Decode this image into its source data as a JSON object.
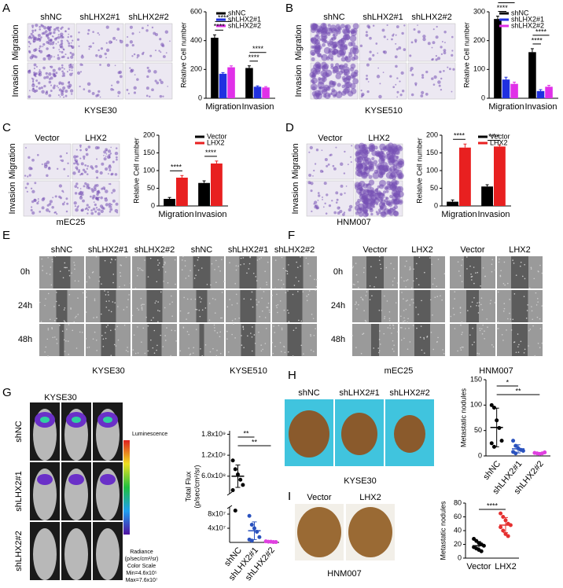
{
  "figure": {
    "panels": [
      {
        "label": "A",
        "columns": [
          "shNC",
          "shLHX2#1",
          "shLHX2#2"
        ],
        "rows": [
          "Migration",
          "Invasion"
        ],
        "caption": "KYSE30"
      },
      {
        "label": "B",
        "columns": [
          "shNC",
          "shLHX2#1",
          "shLHX2#2"
        ],
        "rows": [
          "Migration",
          "Invasion"
        ],
        "caption": "KYSE510"
      },
      {
        "label": "C",
        "columns": [
          "Vector",
          "LHX2"
        ],
        "rows": [
          "Migration",
          "Invasion"
        ],
        "caption": "mEC25"
      },
      {
        "label": "D",
        "columns": [
          "Vector",
          "LHX2"
        ],
        "rows": [
          "Migration",
          "Invasion"
        ],
        "caption": "HNM007"
      },
      {
        "label": "E",
        "rows": [
          "0h",
          "24h",
          "48h"
        ],
        "groups": [
          {
            "columns": [
              "shNC",
              "shLHX2#1",
              "shLHX2#2"
            ],
            "caption": "KYSE30"
          },
          {
            "columns": [
              "shNC",
              "shLHX2#1",
              "shLHX2#2"
            ],
            "caption": "KYSE510"
          }
        ]
      },
      {
        "label": "F",
        "rows": [
          "0h",
          "24h",
          "48h"
        ],
        "groups": [
          {
            "columns": [
              "Vector",
              "LHX2"
            ],
            "caption": "mEC25"
          },
          {
            "columns": [
              "Vector",
              "LHX2"
            ],
            "caption": "HNM007"
          }
        ]
      },
      {
        "label": "G",
        "title": "KYSE30",
        "rows": [
          "shNC",
          "shLHX2#1",
          "shLHX2#2"
        ],
        "colorbar": {
          "title": "Luminescence",
          "lines": [
            "Radiance",
            "(p/sec/cm²/sr)",
            "Color Scale",
            "Min=4.6x10⁵",
            "Max=7.6x10⁷"
          ]
        }
      },
      {
        "label": "H",
        "columns": [
          "shNC",
          "shLHX2#1",
          "shLHX2#2"
        ],
        "caption": "KYSE30"
      },
      {
        "label": "I",
        "columns": [
          "Vector",
          "LHX2"
        ],
        "caption": "HNM007"
      }
    ]
  },
  "chart_data": [
    {
      "type": "bar",
      "categories": [
        "Migration",
        "Invasion"
      ],
      "ylabel": "Relative Cell number",
      "ylim": [
        0,
        600
      ],
      "yticks": [
        0,
        200,
        400,
        600
      ],
      "series": [
        {
          "name": "shNC",
          "color": "#000000",
          "values": [
            420,
            210
          ],
          "errors": [
            20,
            15
          ]
        },
        {
          "name": "shLHX2#1",
          "color": "#2030e0",
          "values": [
            170,
            80
          ],
          "errors": [
            8,
            6
          ]
        },
        {
          "name": "shLHX2#2",
          "color": "#e030e8",
          "values": [
            215,
            75
          ],
          "errors": [
            10,
            6
          ]
        }
      ],
      "annotations": [
        "****",
        "****",
        "****",
        "****"
      ]
    },
    {
      "type": "bar",
      "categories": [
        "Migration",
        "Invasion"
      ],
      "ylabel": "Relative Cell number",
      "ylim": [
        0,
        300
      ],
      "yticks": [
        0,
        100,
        200,
        300
      ],
      "series": [
        {
          "name": "shNC",
          "color": "#000000",
          "values": [
            275,
            160
          ],
          "errors": [
            10,
            12
          ]
        },
        {
          "name": "shLHX2#1",
          "color": "#2030e0",
          "values": [
            65,
            25
          ],
          "errors": [
            8,
            5
          ]
        },
        {
          "name": "shLHX2#2",
          "color": "#e030e8",
          "values": [
            50,
            40
          ],
          "errors": [
            6,
            5
          ]
        }
      ],
      "annotations": [
        "****",
        "****",
        "****",
        "****"
      ]
    },
    {
      "type": "bar",
      "categories": [
        "Migration",
        "Invasion"
      ],
      "ylabel": "Relative Cell number",
      "ylim": [
        0,
        200
      ],
      "yticks": [
        0,
        50,
        100,
        150,
        200
      ],
      "series": [
        {
          "name": "Vector",
          "color": "#000000",
          "values": [
            20,
            65
          ],
          "errors": [
            4,
            6
          ]
        },
        {
          "name": "LHX2",
          "color": "#e82020",
          "values": [
            80,
            120
          ],
          "errors": [
            6,
            7
          ]
        }
      ],
      "annotations": [
        "****",
        "****"
      ]
    },
    {
      "type": "bar",
      "categories": [
        "Migration",
        "Invasion"
      ],
      "ylabel": "Relative Cell number",
      "ylim": [
        0,
        200
      ],
      "yticks": [
        0,
        50,
        100,
        150,
        200
      ],
      "series": [
        {
          "name": "Vector",
          "color": "#000000",
          "values": [
            12,
            55
          ],
          "errors": [
            5,
            5
          ]
        },
        {
          "name": "LHX2",
          "color": "#e82020",
          "values": [
            165,
            168
          ],
          "errors": [
            10,
            4
          ]
        }
      ],
      "annotations": [
        "****",
        "****"
      ]
    },
    {
      "type": "scatter",
      "categories": [
        "shNC",
        "shLHX2#1",
        "shLHX2#2"
      ],
      "colors": [
        "#000000",
        "#2a52be",
        "#e040e0"
      ],
      "ylabel": [
        "Total Flux",
        "(p/sec/cm²/sr)"
      ],
      "axis_break": true,
      "ylim": [
        0,
        100000000
      ],
      "ylim_upper": [
        100000000,
        1900000000
      ],
      "yticks": [
        {
          "value": 40000000,
          "label": "4x10⁷"
        },
        {
          "value": 80000000,
          "label": "8x10⁷"
        },
        {
          "value": 600000000,
          "label": "6.0x10⁸"
        },
        {
          "value": 1200000000,
          "label": "1.2x10⁹"
        },
        {
          "value": 1800000000,
          "label": "1.8x10⁹"
        }
      ],
      "points": [
        [
          1050000000,
          800000000,
          650000000,
          500000000,
          350000000,
          200000000,
          90000000
        ],
        [
          75000000,
          50000000,
          40000000,
          30000000,
          15000000,
          8000000,
          5000000
        ],
        [
          3000000,
          2000000,
          2000000,
          1000000,
          1000000
        ]
      ],
      "means": [
        600000000,
        33000000,
        1800000
      ],
      "sd": [
        320000000,
        25000000,
        800000
      ],
      "annotations": [
        "**",
        "**"
      ]
    },
    {
      "type": "scatter",
      "categories": [
        "shNC",
        "shLHX2#1",
        "shLHX2#2"
      ],
      "colors": [
        "#000000",
        "#2a52be",
        "#e040e0"
      ],
      "ylabel": "Metastatic nodules",
      "ylim": [
        0,
        150
      ],
      "yticks": [
        0,
        50,
        100,
        150
      ],
      "points": [
        [
          100,
          95,
          70,
          55,
          30,
          25,
          18
        ],
        [
          30,
          20,
          15,
          12,
          10,
          8,
          5
        ],
        [
          6,
          5,
          4,
          5,
          7
        ]
      ],
      "means": [
        56,
        14,
        5.4
      ],
      "sd": [
        38,
        8,
        1.1
      ],
      "annotations": [
        "*",
        "**"
      ]
    },
    {
      "type": "scatter",
      "categories": [
        "Vector",
        "LHX2"
      ],
      "colors": [
        "#000000",
        "#e53030"
      ],
      "ylabel": "Metastatic nodules",
      "ylim": [
        0,
        80
      ],
      "yticks": [
        0,
        20,
        40,
        60,
        80
      ],
      "points": [
        [
          28,
          25,
          22,
          20,
          18,
          16,
          14,
          12,
          10
        ],
        [
          65,
          60,
          55,
          50,
          48,
          45,
          40,
          35,
          32
        ]
      ],
      "means": [
        18,
        48
      ],
      "sd": [
        6,
        11
      ],
      "annotations": [
        "****"
      ]
    }
  ]
}
